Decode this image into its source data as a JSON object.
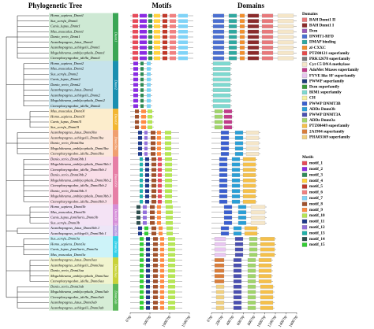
{
  "header": {
    "tree_title": "Phylogenetic Tree",
    "motifs_title": "Motifs",
    "domains_title": "Domains"
  },
  "groups": [
    {
      "label": "Dnmt1",
      "color": "#3aa655",
      "species": [
        "Homo_sapiens_Dnmt1",
        "Sus_scrofa_Dnmt1",
        "Canis_lupus_Dnmt1",
        "Mus_musculus_Dnmt1",
        "Danio_rerio_Dnmt1",
        "Acanthopagrus_latus_Dnmt1",
        "Acanthopagrus_schlegelii_Dnmt1",
        "Megalobrama_amblycephala_Dnmt1",
        "Ctenopharyngodon_idella_Dnmt1"
      ]
    },
    {
      "label": "Dnmt2",
      "color": "#1a8fb0",
      "species": [
        "Homo_sapiens_Dnmt2",
        "Mus_musculus_Dnmt2",
        "Sus_scrofa_Dnmt2",
        "Canis_lupus_Dnmt2",
        "Danio_rerio_Dnmt2",
        "Acanthopagrus_latus_Dnmt2",
        "Acanthopagrus_schlegelii_Dnmt2",
        "Megalobrama_amblycephala_Dnmt2",
        "Ctenopharyngodon_idella_Dnmt2"
      ]
    },
    {
      "label": "Dnmt3l",
      "color": "#f2b632",
      "species": [
        "Mus_musculus_Dnmt3l",
        "Homo_sapiens_Dnmt3l",
        "Canis_lupus_Dnmt3l",
        "Sus_scrofa_Dnmt3l"
      ]
    },
    {
      "label": "Dnmt3ba",
      "color": "#f0a070",
      "species": [
        "Acanthopagrus_latus_Dnmt3ba",
        "Acanthopagrus_schlegelii_Dnmt3ba",
        "Danio_rerio_Dnmt3ba",
        "Megalobrama_amblycephala_Dnmt3ba",
        "Ctenopharyngodon_idella_Dnmt3ba"
      ]
    },
    {
      "label": "Dnmt3bb",
      "color": "#e67fa6",
      "species": [
        "Danio_rerio_Dnmt3bb.1",
        "Megalobrama_amblycephala_Dnmt3bb.1",
        "Ctenopharyngodon_idella_Dnmt3bb.1",
        "Danio_rerio_Dnmt3bb.2",
        "Megalobrama_amblycephala_Dnmt3bb.2",
        "Ctenopharyngodon_idella_Dnmt3bb.2",
        "Danio_rerio_Dnmt3bb.3",
        "Megalobrama_amblycephala_Dnmt3bb.3",
        "Ctenopharyngodon_idella_Dnmt3bb.3"
      ]
    },
    {
      "label": "Dnmt3b",
      "color": "#d58fd8",
      "species": [
        "Homo_sapiens_Dnmt3b",
        "Mus_musculus_Dnmt3b",
        "Canis_lupus_familiaris_Dnmt3b",
        "Sus_scrofa_Dnmt3b"
      ]
    },
    {
      "label": "Dnmt3bb.1",
      "color": "#b69be0",
      "species": [
        "Acanthopagrus_latus_Dnmt3bb.1",
        "Acanthopagrus_schlegelii_Dnmt3bb.1"
      ]
    },
    {
      "label": "Dnmt3a",
      "color": "#38d0e8",
      "species": [
        "Sus_scrofa_Dnmt3a",
        "Homo_sapiens_Dnmt3a",
        "Canis_lupus_familiaris_Dnmt3a",
        "Mus_musculus_Dnmt3a"
      ]
    },
    {
      "label": "Dnmt3aa",
      "color": "#c8d23a",
      "species": [
        "Acanthopagrus_latus_Dnmt3aa",
        "Acanthopagrus_schlegelii_Dnmt3aa",
        "Danio_rerio_Dnmt3aa",
        "Megalobrama_amblycephala_Dnmt3aa",
        "Ctenopharyngodon_idella_Dnmt3aa"
      ]
    },
    {
      "label": "Dnmt3ab",
      "color": "#5cb85c",
      "species": [
        "Danio_rerio_Dnmt3ab",
        "Megalobrama_amblycephala_Dnmt3ab",
        "Ctenopharyngodon_idella_Dnmt3ab",
        "Acanthopagrus_latus_Dnmt3ab",
        "Acanthopagrus_schlegelii_Dnmt3ab"
      ]
    }
  ],
  "motifs_axis": [
    "0 bp",
    "500 bp",
    "1000 bp",
    "1500 bp"
  ],
  "domains_axis": [
    "0 bp",
    "200 bp",
    "400 bp",
    "600 bp",
    "800 bp",
    "1000 bp",
    "1200 bp",
    "1400 bp",
    "1600 bp"
  ],
  "domain_legend": {
    "title": "Domains",
    "items": [
      {
        "label": "BAH Dnmt1 II",
        "color": "#e8787a"
      },
      {
        "label": "BAH Dnmt1 I",
        "color": "#8b2b2b"
      },
      {
        "label": "Dcm",
        "color": "#9b59b6"
      },
      {
        "label": "DNMT1-RFD",
        "color": "#4a6fd1"
      },
      {
        "label": "DMAP binding",
        "color": "#2fa8a0"
      },
      {
        "label": "zf-CXXC",
        "color": "#f28e2b"
      },
      {
        "label": "PTZ00121 superfamily",
        "color": "#e54b4b"
      },
      {
        "label": "PRK12678 superfamily",
        "color": "#7a7a7a"
      },
      {
        "label": "Cyt C5 DNA methylase",
        "color": "#f5e6c8"
      },
      {
        "label": "AdoMet Mtases superfamily",
        "color": "#c23a8a"
      },
      {
        "label": "FYVE like SF superfamily",
        "color": "#e8c6f0"
      },
      {
        "label": "PWWP superfamily",
        "color": "#1f3d7a"
      },
      {
        "label": "Dcm superfamily",
        "color": "#3a9a3a"
      },
      {
        "label": "BIM1 superfamily",
        "color": "#7ed9d0"
      },
      {
        "label": "CH",
        "color": "#f5f0a0"
      },
      {
        "label": "PWWP DNMT3B",
        "color": "#3a5fcf"
      },
      {
        "label": "ADDz Dnmt3b",
        "color": "#2a9fd6"
      },
      {
        "label": "PWWP DNMT3A",
        "color": "#4a4fb0"
      },
      {
        "label": "ADDz Dnmt3a",
        "color": "#a0d46a"
      },
      {
        "label": "PTZ00449 superfamily",
        "color": "#f5c04a"
      },
      {
        "label": "2A1904 superfamily",
        "color": "#d97d3a"
      },
      {
        "label": "PHA03169 superfamily",
        "color": "#f0d080"
      }
    ]
  },
  "motif_legend": {
    "title": "Motifs",
    "items": [
      {
        "label": "motif_1",
        "color": "#e64b5a"
      },
      {
        "label": "motif_2",
        "color": "#8a2be2"
      },
      {
        "label": "motif_3",
        "color": "#2e8b57"
      },
      {
        "label": "motif_4",
        "color": "#ffd23f"
      },
      {
        "label": "motif_5",
        "color": "#c0392b"
      },
      {
        "label": "motif_6",
        "color": "#f08080"
      },
      {
        "label": "motif_7",
        "color": "#7fd3f7"
      },
      {
        "label": "motif_8",
        "color": "#a0522d"
      },
      {
        "label": "motif_9",
        "color": "#ff8c42"
      },
      {
        "label": "motif_10",
        "color": "#b5e655"
      },
      {
        "label": "motif_11",
        "color": "#1e3a8a"
      },
      {
        "label": "motif_12",
        "color": "#9370db"
      },
      {
        "label": "motif_13",
        "color": "#20b2aa"
      },
      {
        "label": "motif_14",
        "color": "#2f4f4f"
      },
      {
        "label": "motif_15",
        "color": "#32cd32"
      }
    ]
  }
}
